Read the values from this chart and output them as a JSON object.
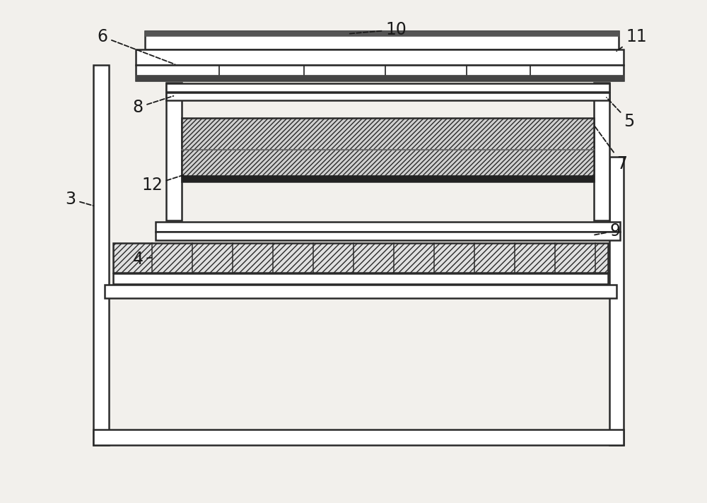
{
  "bg_color": "#f2f0ec",
  "line_color": "#2a2a2a",
  "fig_width": 10.0,
  "fig_height": 7.12,
  "dpi": 100,
  "lw": 1.8
}
